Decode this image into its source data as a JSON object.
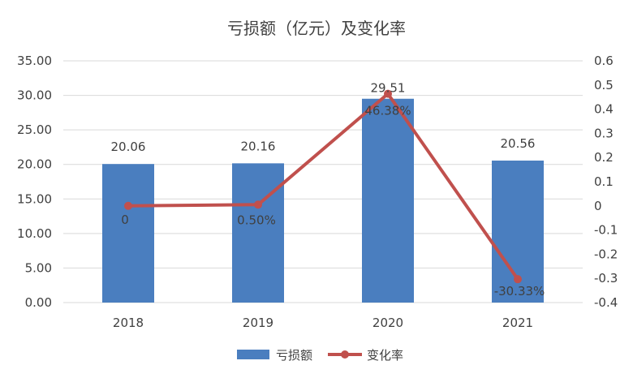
{
  "chart_data": {
    "type": "bar",
    "title": "亏损额（亿元）及变化率",
    "categories": [
      "2018",
      "2019",
      "2020",
      "2021"
    ],
    "series": [
      {
        "name": "亏损额",
        "type": "bar",
        "axis": "left",
        "color": "#4a7ebf",
        "values": [
          20.06,
          20.16,
          29.51,
          20.56
        ],
        "labels": [
          "20.06",
          "20.16",
          "29.51",
          "20.56"
        ]
      },
      {
        "name": "变化率",
        "type": "line",
        "axis": "right",
        "color": "#c0504d",
        "values": [
          0,
          0.005,
          0.4638,
          -0.3033
        ],
        "labels": [
          "0",
          "0.50%",
          "46.38%",
          "-30.33%"
        ]
      }
    ],
    "y_left": {
      "min": 0,
      "max": 35,
      "ticks": [
        "0.00",
        "5.00",
        "10.00",
        "15.00",
        "20.00",
        "25.00",
        "30.00",
        "35.00"
      ],
      "tick_values": [
        0,
        5,
        10,
        15,
        20,
        25,
        30,
        35
      ]
    },
    "y_right": {
      "min": -0.4,
      "max": 0.6,
      "ticks": [
        "-0.4",
        "-0.3",
        "-0.2",
        "-0.1",
        "0",
        "0.1",
        "0.2",
        "0.3",
        "0.4",
        "0.5",
        "0.6"
      ],
      "tick_values": [
        -0.4,
        -0.3,
        -0.2,
        -0.1,
        0,
        0.1,
        0.2,
        0.3,
        0.4,
        0.5,
        0.6
      ]
    },
    "grid": true,
    "legend_position": "bottom"
  }
}
